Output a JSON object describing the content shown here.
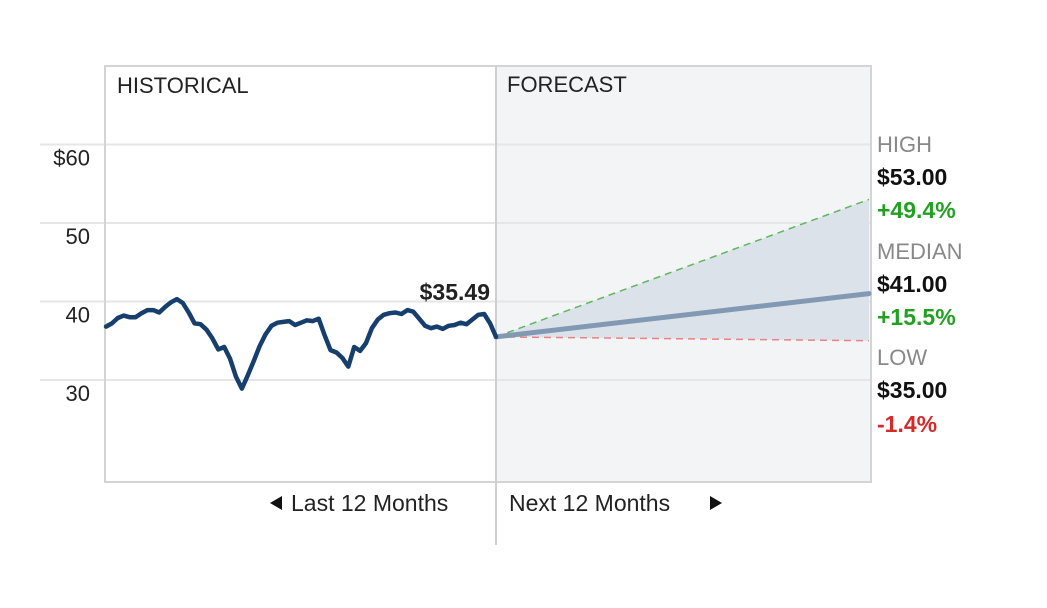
{
  "chart_data": {
    "type": "line",
    "sections": {
      "historical": "HISTORICAL",
      "forecast": "FORECAST"
    },
    "y_ticks": [
      {
        "value": 60,
        "label": "$60"
      },
      {
        "value": 50,
        "label": "50"
      },
      {
        "value": 40,
        "label": "40"
      },
      {
        "value": 30,
        "label": "30"
      }
    ],
    "ylim": [
      17,
      70
    ],
    "x_captions": {
      "past": "Last 12 Months",
      "future": "Next 12 Months"
    },
    "historical": {
      "last_price": 35.49,
      "last_price_label": "$35.49",
      "values": [
        36.8,
        37.2,
        37.9,
        38.2,
        38.0,
        38.0,
        38.5,
        38.9,
        38.9,
        38.6,
        39.3,
        39.9,
        40.3,
        39.8,
        38.6,
        37.2,
        37.1,
        36.4,
        35.3,
        33.9,
        34.2,
        32.7,
        30.4,
        28.9,
        30.6,
        32.4,
        34.3,
        35.8,
        36.9,
        37.3,
        37.4,
        37.5,
        37.0,
        37.3,
        37.6,
        37.5,
        37.8,
        35.7,
        33.8,
        33.5,
        32.8,
        31.7,
        34.2,
        33.7,
        34.7,
        36.6,
        37.7,
        38.3,
        38.5,
        38.6,
        38.4,
        38.9,
        38.7,
        37.8,
        36.9,
        36.6,
        36.8,
        36.5,
        36.9,
        37.0,
        37.3,
        37.1,
        37.7,
        38.3,
        38.4,
        37.2,
        35.49
      ],
      "color": "#163f6e"
    },
    "forecast": {
      "start": 35.49,
      "high": {
        "caption": "HIGH",
        "value": 53.0,
        "value_label": "$53.00",
        "change_label": "+49.4%",
        "color": "#5cb85c"
      },
      "median": {
        "caption": "MEDIAN",
        "value": 41.0,
        "value_label": "$41.00",
        "change_label": "+15.5%",
        "color": "#8199b3"
      },
      "low": {
        "caption": "LOW",
        "value": 35.0,
        "value_label": "$35.00",
        "change_label": "-1.4%",
        "color": "#e88383"
      },
      "band_color": "#dce2ea"
    },
    "grid": true
  }
}
